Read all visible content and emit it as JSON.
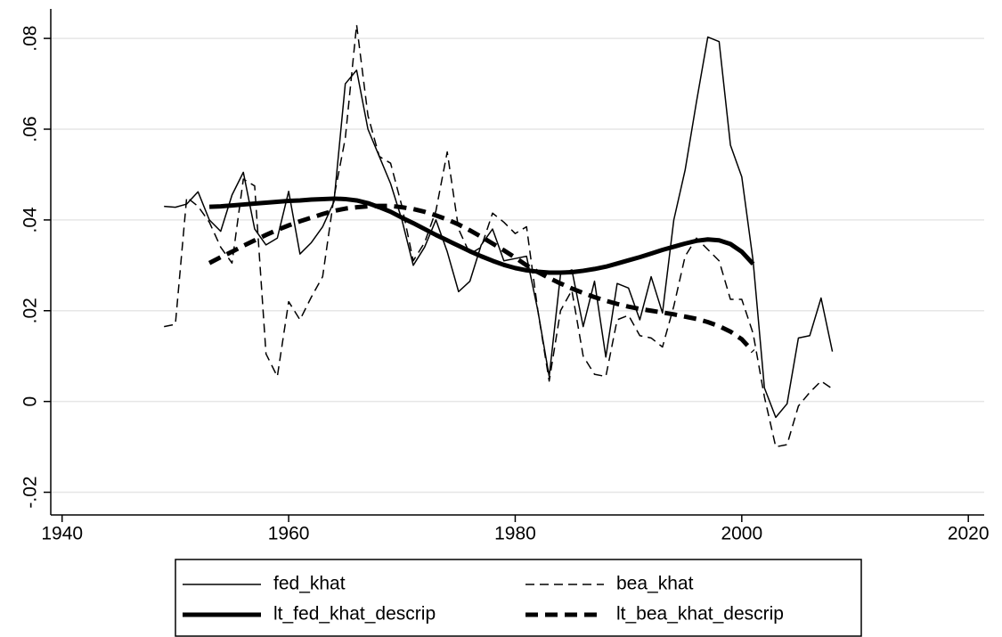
{
  "chart_data": {
    "type": "line",
    "x": [
      1949,
      1950,
      1951,
      1952,
      1953,
      1954,
      1955,
      1956,
      1957,
      1958,
      1959,
      1960,
      1961,
      1962,
      1963,
      1964,
      1965,
      1966,
      1967,
      1968,
      1969,
      1970,
      1971,
      1972,
      1973,
      1974,
      1975,
      1976,
      1977,
      1978,
      1979,
      1980,
      1981,
      1982,
      1983,
      1984,
      1985,
      1986,
      1987,
      1988,
      1989,
      1990,
      1991,
      1992,
      1993,
      1994,
      1995,
      1996,
      1997,
      1998,
      1999,
      2000,
      2001,
      2002,
      2003,
      2004,
      2005,
      2006,
      2007,
      2008
    ],
    "series": [
      {
        "name": "fed_khat",
        "color": "#000000",
        "style": "solid",
        "width": 1.5,
        "values": [
          0.043,
          0.0428,
          0.0435,
          0.0462,
          0.04,
          0.0375,
          0.0455,
          0.0505,
          0.038,
          0.0345,
          0.036,
          0.0463,
          0.0325,
          0.035,
          0.0385,
          0.044,
          0.07,
          0.073,
          0.06,
          0.054,
          0.048,
          0.04,
          0.03,
          0.034,
          0.04,
          0.033,
          0.0242,
          0.0265,
          0.0345,
          0.038,
          0.031,
          0.0315,
          0.032,
          0.02,
          0.0055,
          0.028,
          0.029,
          0.0165,
          0.0265,
          0.0098,
          0.026,
          0.025,
          0.018,
          0.0275,
          0.0195,
          0.04,
          0.051,
          0.066,
          0.0803,
          0.0793,
          0.0565,
          0.0495,
          0.031,
          0.003,
          -0.0035,
          -0.0005,
          0.014,
          0.0145,
          0.0228,
          0.011
        ]
      },
      {
        "name": "bea_khat",
        "color": "#000000",
        "style": "dash",
        "width": 1.5,
        "values": [
          0.0165,
          0.017,
          0.045,
          0.043,
          0.0395,
          0.034,
          0.0305,
          0.049,
          0.0475,
          0.0105,
          0.0055,
          0.022,
          0.018,
          0.023,
          0.0275,
          0.045,
          0.058,
          0.083,
          0.063,
          0.054,
          0.0525,
          0.043,
          0.031,
          0.035,
          0.042,
          0.055,
          0.038,
          0.0325,
          0.034,
          0.0415,
          0.0395,
          0.037,
          0.0385,
          0.02,
          0.0045,
          0.02,
          0.0245,
          0.01,
          0.006,
          0.0055,
          0.018,
          0.019,
          0.0145,
          0.014,
          0.012,
          0.021,
          0.032,
          0.036,
          0.0335,
          0.031,
          0.0225,
          0.0225,
          0.015,
          0.001,
          -0.01,
          -0.0095,
          -0.001,
          0.002,
          0.0045,
          0.0028
        ]
      },
      {
        "name": "lt_fed_khat_descrip",
        "color": "#000000",
        "style": "solid",
        "width": 5,
        "values": [
          null,
          null,
          null,
          null,
          0.0429,
          0.043,
          0.0432,
          0.0434,
          0.0436,
          0.0438,
          0.044,
          0.0442,
          0.0443,
          0.0445,
          0.0446,
          0.0447,
          0.0446,
          0.0443,
          0.0437,
          0.0428,
          0.0418,
          0.0405,
          0.0393,
          0.038,
          0.0367,
          0.0355,
          0.0343,
          0.0331,
          0.032,
          0.031,
          0.0301,
          0.0294,
          0.0289,
          0.0286,
          0.0284,
          0.0284,
          0.0285,
          0.0288,
          0.0292,
          0.0297,
          0.0304,
          0.0311,
          0.0318,
          0.0326,
          0.0334,
          0.0341,
          0.0348,
          0.0354,
          0.0357,
          0.0355,
          0.0347,
          0.033,
          0.0303,
          null,
          null,
          null,
          null,
          null,
          null,
          null
        ]
      },
      {
        "name": "lt_bea_khat_descrip",
        "color": "#000000",
        "style": "dash",
        "width": 5,
        "values": [
          null,
          null,
          null,
          null,
          0.0305,
          0.0318,
          0.033,
          0.0343,
          0.0355,
          0.0367,
          0.0378,
          0.0388,
          0.0397,
          0.0405,
          0.0413,
          0.042,
          0.0425,
          0.0428,
          0.043,
          0.0431,
          0.0431,
          0.0428,
          0.0424,
          0.0418,
          0.041,
          0.0401,
          0.039,
          0.0377,
          0.0363,
          0.0348,
          0.0333,
          0.0317,
          0.03,
          0.0285,
          0.0272,
          0.026,
          0.0249,
          0.0239,
          0.023,
          0.0222,
          0.0215,
          0.0209,
          0.0204,
          0.02,
          0.0196,
          0.0192,
          0.0187,
          0.0182,
          0.0175,
          0.0166,
          0.0154,
          0.0137,
          0.011,
          null,
          null,
          null,
          null,
          null,
          null,
          null
        ]
      }
    ],
    "xlim": [
      1939,
      2021.4
    ],
    "xticks": [
      1940,
      1960,
      1980,
      2000,
      2020
    ],
    "ylim": [
      -0.025,
      0.0865
    ],
    "yticks": [
      {
        "value": -0.02,
        "label": "-.02"
      },
      0,
      {
        "value": 0.02,
        "label": ".02"
      },
      {
        "value": 0.04,
        "label": ".04"
      },
      {
        "value": 0.06,
        "label": ".06"
      },
      {
        "value": 0.08,
        "label": ".08"
      }
    ],
    "grid": true,
    "legend": "bottom"
  }
}
